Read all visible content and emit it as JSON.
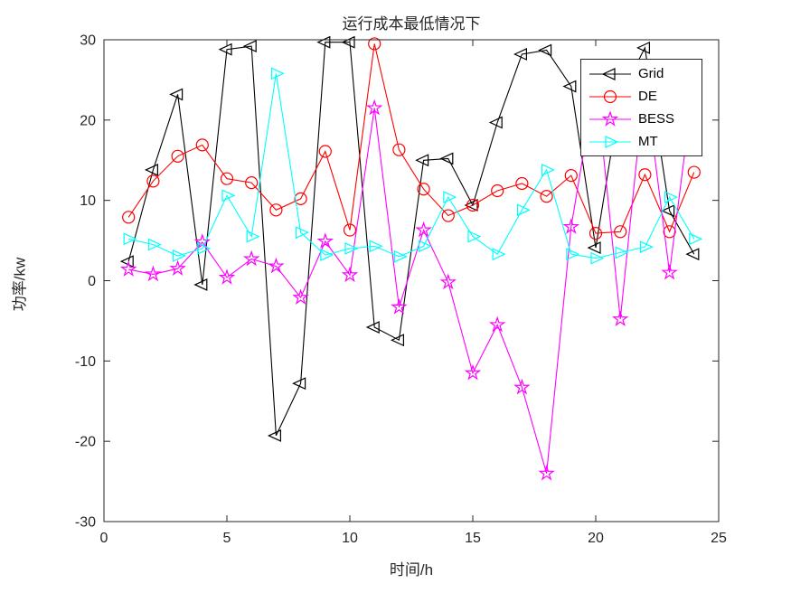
{
  "figure": {
    "title": "运行成本最低情况下",
    "xlabel": "时间/h",
    "ylabel": "功率/kw"
  },
  "chart_data": {
    "type": "line",
    "title": "运行成本最低情况下",
    "xlabel": "时间/h",
    "ylabel": "功率/kw",
    "xlim": [
      0,
      25
    ],
    "ylim": [
      -30,
      30
    ],
    "xticks": [
      0,
      5,
      10,
      15,
      20,
      25
    ],
    "yticks": [
      -30,
      -20,
      -10,
      0,
      10,
      20,
      30
    ],
    "grid": false,
    "legend_position": "top-right",
    "x": [
      1,
      2,
      3,
      4,
      5,
      6,
      7,
      8,
      9,
      10,
      11,
      12,
      13,
      14,
      15,
      16,
      17,
      18,
      19,
      20,
      21,
      22,
      23,
      24
    ],
    "series": [
      {
        "name": "Grid",
        "color": "#000000",
        "marker": "triangle-left",
        "values": [
          2.4,
          13.8,
          23.2,
          -0.5,
          28.8,
          29.2,
          -19.3,
          -12.8,
          29.7,
          29.7,
          -5.8,
          -7.4,
          15.0,
          15.2,
          9.4,
          19.7,
          28.2,
          28.7,
          24.2,
          4.1,
          23.0,
          29.0,
          8.7,
          3.3
        ]
      },
      {
        "name": "DE",
        "color": "#ff0000",
        "marker": "circle",
        "values": [
          7.9,
          12.4,
          15.5,
          16.9,
          12.7,
          12.2,
          8.8,
          10.2,
          16.1,
          6.3,
          29.5,
          16.3,
          11.4,
          8.1,
          9.4,
          11.2,
          12.1,
          10.5,
          13.1,
          5.9,
          6.1,
          13.2,
          6.1,
          13.5
        ]
      },
      {
        "name": "BESS",
        "color": "#ff00ff",
        "marker": "star",
        "values": [
          1.4,
          0.8,
          1.5,
          4.8,
          0.4,
          2.7,
          1.8,
          -2.1,
          4.9,
          0.7,
          21.5,
          -3.3,
          6.3,
          -0.2,
          -11.5,
          -5.5,
          -13.3,
          -24.0,
          6.7,
          25.0,
          -4.8,
          25.0,
          1.0,
          25.0
        ]
      },
      {
        "name": "MT",
        "color": "#00ffff",
        "marker": "triangle-right",
        "values": [
          5.2,
          4.5,
          3.1,
          4.0,
          10.6,
          5.5,
          25.8,
          6.0,
          3.2,
          4.0,
          4.3,
          3.0,
          4.3,
          10.4,
          5.5,
          3.3,
          8.8,
          13.8,
          3.3,
          2.8,
          3.5,
          4.2,
          10.4,
          5.2
        ]
      }
    ]
  }
}
